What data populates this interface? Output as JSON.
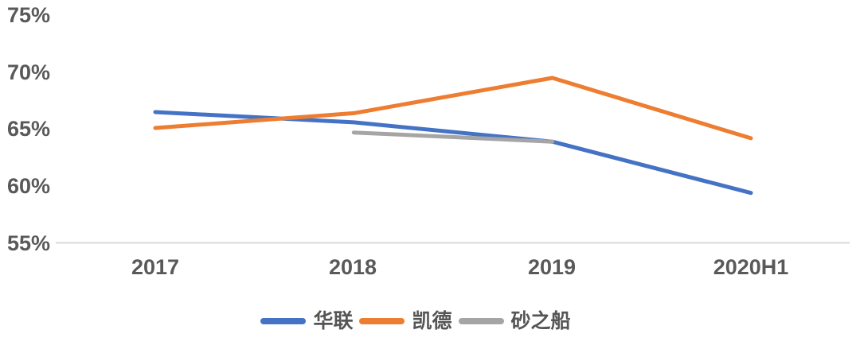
{
  "chart_data": {
    "type": "line",
    "title": "",
    "xlabel": "",
    "ylabel": "",
    "categories": [
      "2017",
      "2018",
      "2019",
      "2020H1"
    ],
    "series": [
      {
        "name": "华联",
        "color": "#4472C4",
        "values": [
          66.5,
          65.6,
          63.9,
          59.4
        ]
      },
      {
        "name": "凯德",
        "color": "#ED7D31",
        "values": [
          65.1,
          66.4,
          69.5,
          64.2
        ]
      },
      {
        "name": "砂之船",
        "color": "#A5A5A5",
        "values": [
          null,
          64.7,
          63.9,
          null
        ]
      }
    ],
    "ylim": [
      55,
      75
    ],
    "y_ticks": [
      55,
      60,
      65,
      70,
      75
    ],
    "y_tick_labels": [
      "55%",
      "60%",
      "65%",
      "70%",
      "75%"
    ],
    "unit": "percent",
    "grid": "baseline-only",
    "legend_position": "bottom",
    "line_width": 5,
    "axis_line_color": "#D9D9D9",
    "tick_label_color": "#595959"
  }
}
